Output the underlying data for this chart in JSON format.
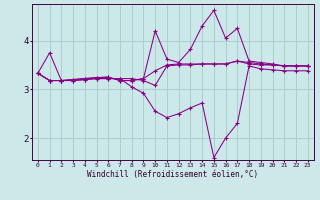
{
  "xlabel": "Windchill (Refroidissement éolien,°C)",
  "background_color": "#cde8e8",
  "grid_color": "#aacece",
  "line_color": "#880088",
  "x_ticks": [
    0,
    1,
    2,
    3,
    4,
    5,
    6,
    7,
    8,
    9,
    10,
    11,
    12,
    13,
    14,
    15,
    16,
    17,
    18,
    19,
    20,
    21,
    22,
    23
  ],
  "y_ticks": [
    2,
    3,
    4
  ],
  "xlim": [
    -0.5,
    23.5
  ],
  "ylim": [
    1.55,
    4.75
  ],
  "series": [
    [
      3.33,
      3.75,
      3.18,
      3.2,
      3.22,
      3.24,
      3.25,
      3.18,
      3.18,
      3.22,
      4.2,
      3.62,
      3.55,
      3.82,
      4.3,
      4.62,
      4.05,
      4.25,
      3.58,
      3.55,
      3.52,
      3.48,
      3.48,
      3.48
    ],
    [
      3.33,
      3.18,
      3.18,
      3.2,
      3.22,
      3.24,
      3.25,
      3.18,
      3.18,
      3.22,
      3.38,
      3.5,
      3.52,
      3.52,
      3.52,
      3.52,
      3.52,
      3.58,
      3.55,
      3.52,
      3.5,
      3.48,
      3.48,
      3.48
    ],
    [
      3.33,
      3.18,
      3.18,
      3.18,
      3.2,
      3.22,
      3.22,
      3.22,
      3.22,
      3.18,
      3.08,
      3.48,
      3.5,
      3.5,
      3.52,
      3.52,
      3.52,
      3.58,
      3.52,
      3.5,
      3.5,
      3.48,
      3.48,
      3.48
    ],
    [
      3.33,
      3.18,
      3.18,
      3.18,
      3.2,
      3.22,
      3.22,
      3.22,
      3.05,
      2.92,
      2.55,
      2.42,
      2.5,
      2.62,
      2.72,
      1.6,
      2.0,
      2.3,
      3.48,
      3.42,
      3.4,
      3.38,
      3.38,
      3.38
    ]
  ]
}
